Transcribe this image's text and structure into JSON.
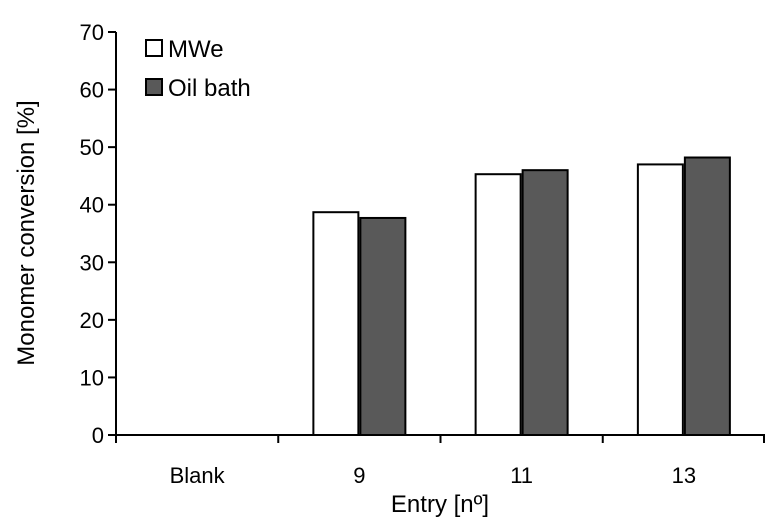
{
  "chart_data": {
    "type": "bar",
    "title": "",
    "xlabel": "Entry [nº]",
    "ylabel": "Monomer conversion [%]",
    "ylim": [
      0,
      70
    ],
    "yticks": [
      0,
      10,
      20,
      30,
      40,
      50,
      60,
      70
    ],
    "categories": [
      "Blank",
      "9",
      "11",
      "13"
    ],
    "series": [
      {
        "name": "MWe",
        "values": [
          0,
          38.7,
          45.3,
          47.0
        ],
        "color": "#ffffff"
      },
      {
        "name": "Oil bath",
        "values": [
          0,
          37.7,
          46.0,
          48.2
        ],
        "color": "#595959"
      }
    ],
    "grid": false,
    "legend_position": "top-left"
  }
}
